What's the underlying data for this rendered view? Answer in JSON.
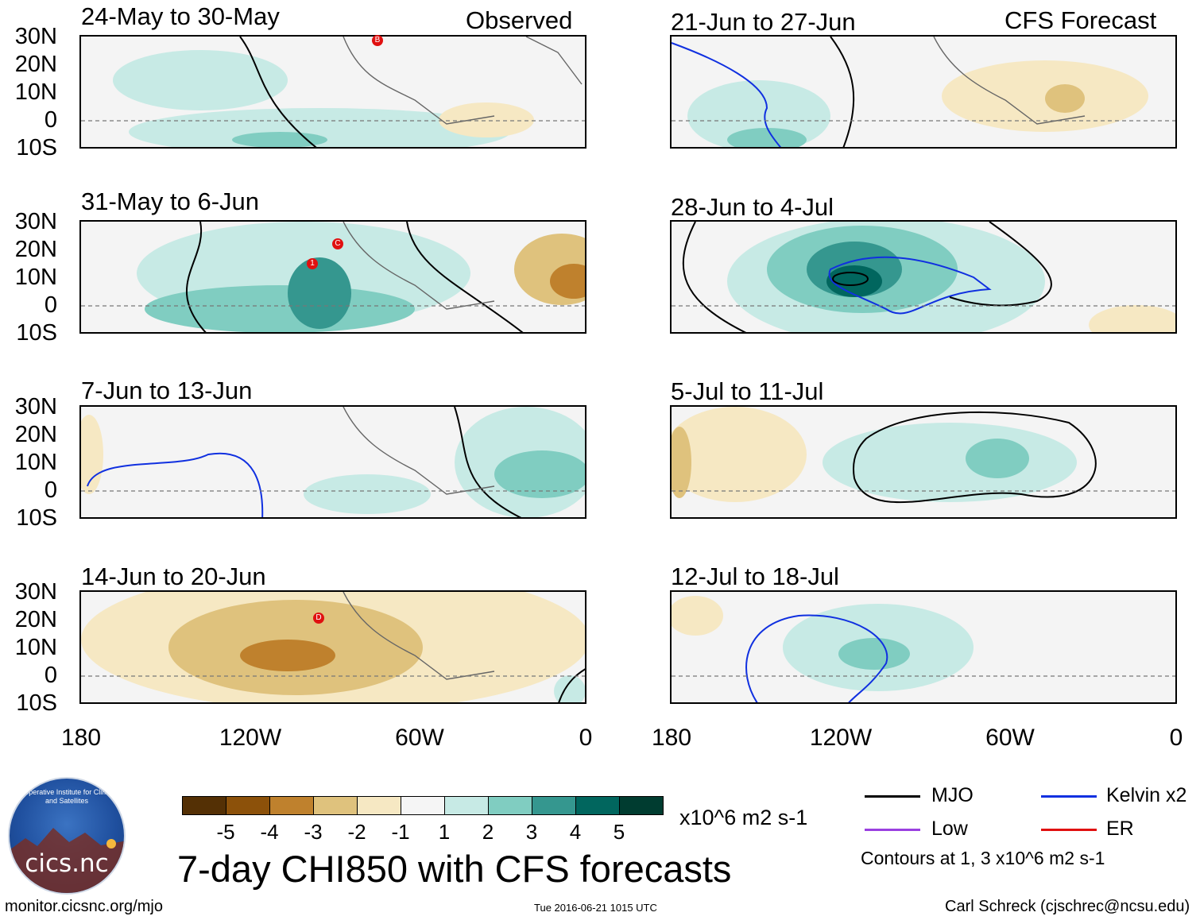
{
  "header": {
    "left_label": "Observed",
    "right_label": "CFS Forecast"
  },
  "panels": [
    {
      "title": "24-May to 30-May",
      "column": "observed"
    },
    {
      "title": "31-May to 6-Jun",
      "column": "observed"
    },
    {
      "title": "7-Jun to 13-Jun",
      "column": "observed"
    },
    {
      "title": "14-Jun to 20-Jun",
      "column": "observed"
    },
    {
      "title": "21-Jun to 27-Jun",
      "column": "forecast"
    },
    {
      "title": "28-Jun to 4-Jul",
      "column": "forecast"
    },
    {
      "title": "5-Jul to 11-Jul",
      "column": "forecast"
    },
    {
      "title": "12-Jul to 18-Jul",
      "column": "forecast"
    }
  ],
  "lat_labels": [
    "30N",
    "20N",
    "10N",
    "0",
    "10S"
  ],
  "lon_labels": [
    "180",
    "120W",
    "60W",
    "0"
  ],
  "storm_markers": [
    {
      "panel": 0,
      "label": "B"
    },
    {
      "panel": 1,
      "label": "1"
    },
    {
      "panel": 1,
      "label": "C"
    },
    {
      "panel": 3,
      "label": "D"
    }
  ],
  "colorbar": {
    "colors": [
      "#543005",
      "#8c510a",
      "#bf812d",
      "#dfc27d",
      "#f6e8c3",
      "#f5f5f5",
      "#c7eae5",
      "#80cdc1",
      "#35978f",
      "#01665e",
      "#003c30"
    ],
    "ticks": [
      "-5",
      "-4",
      "-3",
      "-2",
      "-1",
      "1",
      "2",
      "3",
      "4",
      "5"
    ],
    "units": "x10^6 m2 s-1"
  },
  "main_title": "7-day CHI850 with CFS forecasts",
  "legend": [
    {
      "label": "MJO",
      "color": "#000000"
    },
    {
      "label": "Kelvin x2",
      "color": "#1030e0"
    },
    {
      "label": "Low",
      "color": "#9a40e0"
    },
    {
      "label": "ER",
      "color": "#e01010"
    }
  ],
  "contour_note": "Contours at 1, 3 x10^6 m2 s-1",
  "logo": {
    "text": "cics.nc",
    "ring_text": "Cooperative Institute for Climate and Satellites"
  },
  "footer": {
    "left": "monitor.cicsnc.org/mjo",
    "center": "Tue 2016-06-21 1015 UTC",
    "right": "Carl Schreck (cjschrec@ncsu.edu)"
  }
}
